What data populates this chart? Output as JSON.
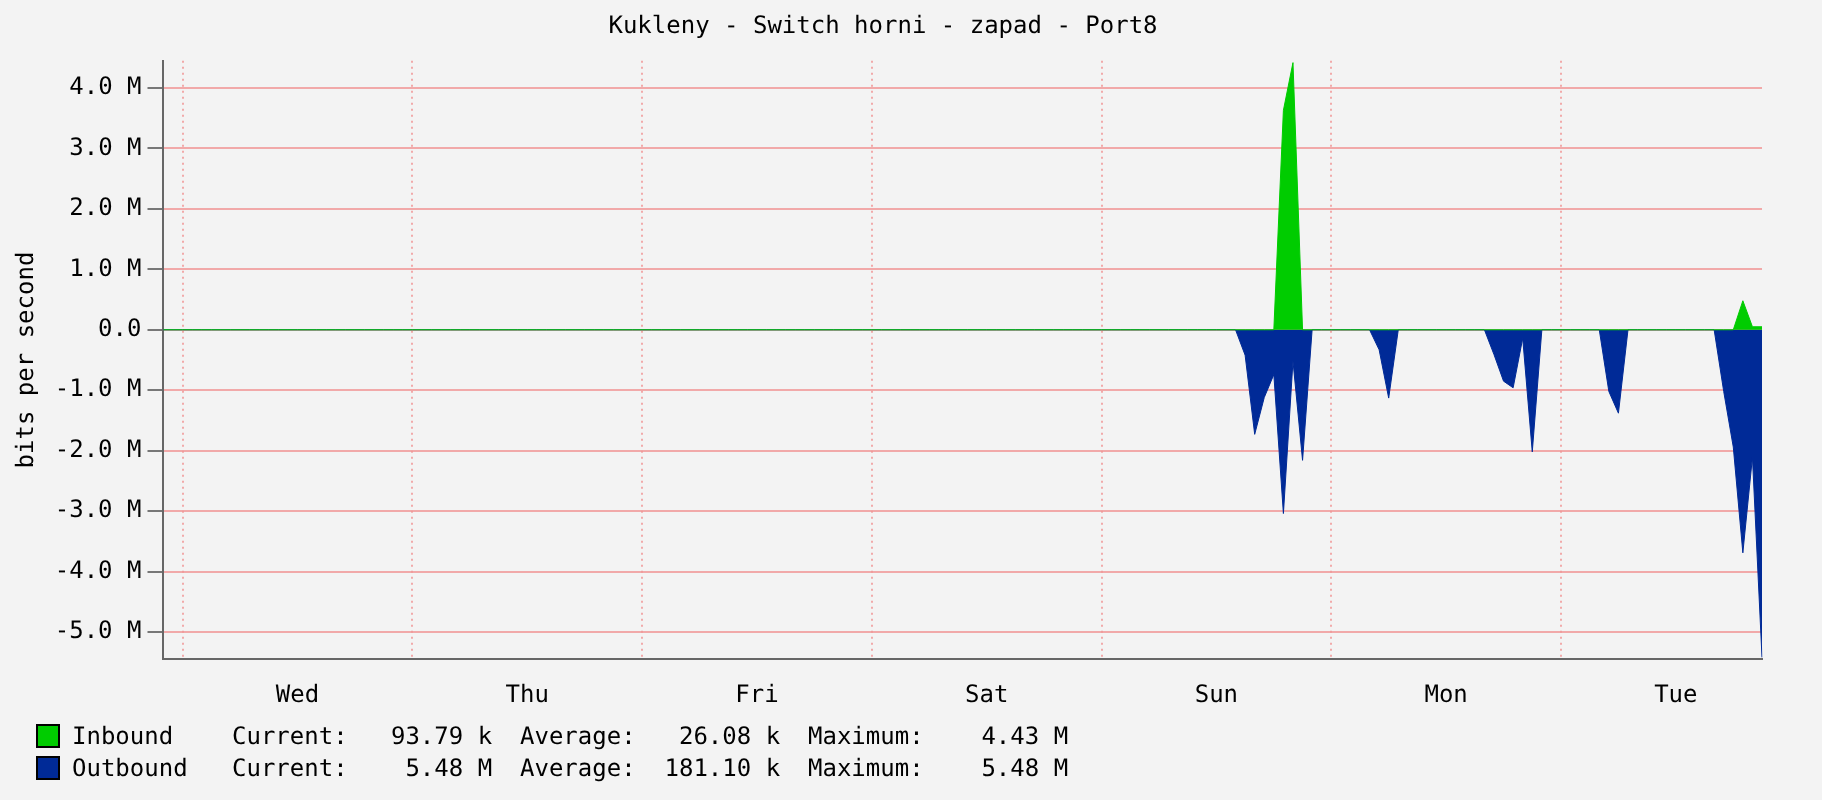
{
  "chart_data": {
    "type": "area",
    "title": "Kukleny - Switch horni - zapad - Port8",
    "ylabel": "bits per second",
    "categories": [
      null,
      null,
      null,
      null,
      null,
      null,
      null,
      null,
      null,
      null,
      null,
      null,
      null,
      null,
      "Wed",
      null,
      null,
      null,
      null,
      null,
      null,
      null,
      null,
      null,
      null,
      null,
      null,
      null,
      null,
      null,
      null,
      null,
      null,
      null,
      null,
      null,
      null,
      null,
      "Thu",
      null,
      null,
      null,
      null,
      null,
      null,
      null,
      null,
      null,
      null,
      null,
      null,
      null,
      null,
      null,
      null,
      null,
      null,
      null,
      null,
      null,
      null,
      null,
      "Fri",
      null,
      null,
      null,
      null,
      null,
      null,
      null,
      null,
      null,
      null,
      null,
      null,
      null,
      null,
      null,
      null,
      null,
      null,
      null,
      null,
      null,
      null,
      null,
      "Sat",
      null,
      null,
      null,
      null,
      null,
      null,
      null,
      null,
      null,
      null,
      null,
      null,
      null,
      null,
      null,
      null,
      null,
      null,
      null,
      null,
      null,
      null,
      null,
      "Sun",
      null,
      null,
      null,
      null,
      null,
      null,
      null,
      null,
      null,
      null,
      null,
      null,
      null,
      null,
      null,
      null,
      null,
      null,
      null,
      null,
      null,
      null,
      null,
      "Mon",
      null,
      null,
      null,
      null,
      null,
      null,
      null,
      null,
      null,
      null,
      null,
      null,
      null,
      null,
      null,
      null,
      null,
      null,
      null,
      null,
      null,
      null,
      null,
      "Tue",
      null,
      null,
      null,
      null,
      null,
      null,
      null,
      null,
      null
    ],
    "ylim": [
      -5.45,
      4.45
    ],
    "yticks": [
      {
        "value": -5,
        "label": "-5.0 M"
      },
      {
        "value": -4,
        "label": "-4.0 M"
      },
      {
        "value": -3,
        "label": "-3.0 M"
      },
      {
        "value": -2,
        "label": "-2.0 M"
      },
      {
        "value": -1,
        "label": "-1.0 M"
      },
      {
        "value": 0,
        "label": "0.0"
      },
      {
        "value": 1,
        "label": "1.0 M"
      },
      {
        "value": 2,
        "label": "2.0 M"
      },
      {
        "value": 3,
        "label": "3.0 M"
      },
      {
        "value": 4,
        "label": "4.0 M"
      }
    ],
    "grid": true,
    "legend": "bottom",
    "series": [
      {
        "name": "Inbound",
        "color": "#00cc00",
        "values": [
          0,
          0,
          0,
          0,
          0,
          0,
          0,
          0,
          0,
          0,
          0,
          0,
          0,
          0,
          0,
          0,
          0,
          0,
          0,
          0,
          0,
          0,
          0,
          0,
          0,
          0,
          0,
          0,
          0,
          0,
          0,
          0,
          0,
          0,
          0,
          0,
          0,
          0,
          0,
          0,
          0,
          0,
          0,
          0,
          0,
          0,
          0,
          0,
          0,
          0,
          0,
          0,
          0,
          0,
          0,
          0,
          0,
          0,
          0,
          0,
          0,
          0,
          0,
          0,
          0,
          0,
          0,
          0,
          0,
          0,
          0,
          0,
          0,
          0,
          0,
          0,
          0,
          0,
          0,
          0,
          0,
          0,
          0,
          0,
          0,
          0,
          0,
          0,
          0,
          0,
          0,
          0,
          0,
          0,
          0,
          0,
          0,
          0,
          0,
          0,
          0,
          0,
          0,
          0,
          0,
          0,
          0,
          0,
          0,
          0,
          0,
          0,
          0,
          0,
          0,
          0,
          0,
          3.63,
          4.42,
          0,
          0,
          0,
          0,
          0,
          0,
          0,
          0,
          0,
          0,
          0,
          0,
          0,
          0,
          0,
          0,
          0,
          0,
          0,
          0,
          0,
          0,
          0,
          0,
          0,
          0,
          0,
          0,
          0,
          0,
          0,
          0,
          0,
          0,
          0,
          0,
          0,
          0,
          0,
          0,
          0,
          0,
          0,
          0,
          0,
          0,
          0.48,
          0.05,
          0.05
        ]
      },
      {
        "name": "Outbound",
        "color": "#002a97",
        "values": [
          0,
          0,
          0,
          0,
          0,
          0,
          0,
          0,
          0,
          0,
          0,
          0,
          0,
          0,
          0,
          0,
          0,
          0,
          0,
          0,
          0,
          0,
          0,
          0,
          0,
          0,
          0,
          0,
          0,
          0,
          0,
          0,
          0,
          0,
          0,
          0,
          0,
          0,
          0,
          0,
          0,
          0,
          0,
          0,
          0,
          0,
          0,
          0,
          0,
          0,
          0,
          0,
          0,
          0,
          0,
          0,
          0,
          0,
          0,
          0,
          0,
          0,
          0,
          0,
          0,
          0,
          0,
          0,
          0,
          0,
          0,
          0,
          0,
          0,
          0,
          0,
          0,
          0,
          0,
          0,
          0,
          0,
          0,
          0,
          0,
          0,
          0,
          0,
          0,
          0,
          0,
          0,
          0,
          0,
          0,
          0,
          0,
          0,
          0,
          0,
          0,
          0,
          0,
          0,
          0,
          0,
          0,
          0,
          0,
          0,
          0,
          0,
          0,
          -0.42,
          -1.73,
          -1.12,
          -0.74,
          -3.04,
          -0.52,
          -2.16,
          0,
          0,
          0,
          0,
          0,
          0,
          0,
          -0.33,
          -1.13,
          0,
          0,
          0,
          0,
          0,
          0,
          0,
          0,
          0,
          0,
          -0.41,
          -0.85,
          -0.96,
          -0.14,
          -2.02,
          0,
          0,
          0,
          0,
          0,
          0,
          0,
          -1.02,
          -1.38,
          0,
          0,
          0,
          0,
          0,
          0,
          0,
          0,
          0,
          0,
          -1.02,
          -1.94,
          -3.69,
          -2.11,
          -5.42
        ]
      }
    ],
    "annotations": [
      "Current:   93.79 k",
      "Average:   26.08 k",
      "Maximum:    4.43 M",
      "Current:    5.48 M",
      "Average:  181.10 k",
      "Maximum:    5.48 M"
    ]
  }
}
